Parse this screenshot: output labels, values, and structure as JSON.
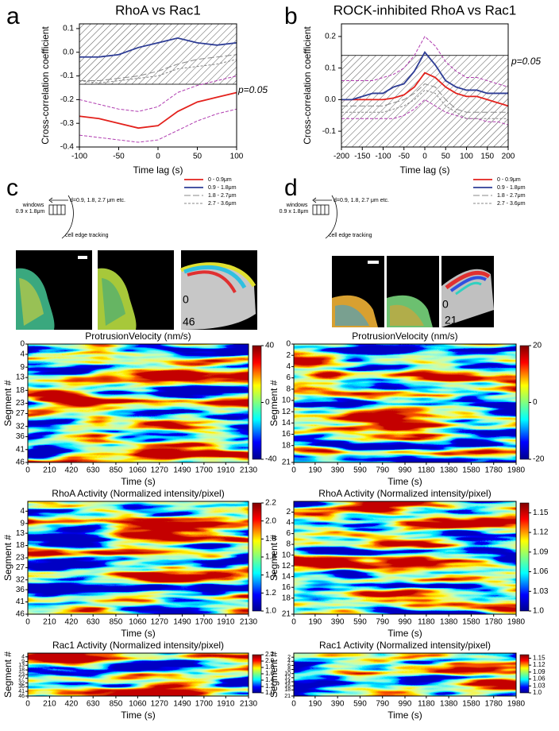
{
  "panel_labels": [
    "a",
    "b",
    "c",
    "d"
  ],
  "diagrams": [
    {
      "labels": [
        "d=0.9, 1.8, 2.7 μm etc.",
        "windows",
        "0.9 x 1.8μm",
        "cell edge tracking"
      ]
    },
    {
      "labels": [
        "d=0.9, 1.8, 2.7 μm etc.",
        "windows",
        "0.9 x 1.8μm",
        "cell edge tracking"
      ]
    }
  ],
  "micrographs": [
    {
      "labels": [
        "0",
        "46"
      ]
    },
    {
      "labels": [
        "0",
        "21"
      ]
    }
  ],
  "chart_data": [
    {
      "type": "line",
      "title": "RhoA vs Rac1",
      "xlabel": "Time lag (s)",
      "ylabel": "Cross-correlation coefficient",
      "annotation": "p=0.05",
      "significance_band": [
        -0.135,
        0.12
      ],
      "xlim": [
        -100,
        100
      ],
      "xticks": [
        -100,
        -50,
        0,
        50,
        100
      ],
      "ylim": [
        -0.4,
        0.12
      ],
      "yticks": [
        -0.4,
        -0.3,
        -0.2,
        -0.1,
        {
          "value": 0,
          "label": "0.0"
        },
        0.1
      ],
      "x": [
        -100,
        -75,
        -50,
        -25,
        0,
        25,
        50,
        75,
        100
      ],
      "series": [
        {
          "name": "0 - 0.9μm",
          "color": "#e3211c",
          "dash": "solid",
          "values": [
            -0.27,
            -0.28,
            -0.3,
            -0.32,
            -0.31,
            -0.25,
            -0.21,
            -0.19,
            -0.17
          ],
          "ci_color": "#b03cb0",
          "ci_upper": [
            -0.2,
            -0.22,
            -0.24,
            -0.25,
            -0.23,
            -0.17,
            -0.14,
            -0.12,
            -0.1
          ],
          "ci_lower": [
            -0.35,
            -0.36,
            -0.37,
            -0.38,
            -0.37,
            -0.33,
            -0.29,
            -0.26,
            -0.24
          ]
        },
        {
          "name": "0.9 - 1.8μm",
          "color": "#2e3d96",
          "dash": "solid",
          "values": [
            -0.02,
            -0.02,
            -0.01,
            0.02,
            0.04,
            0.06,
            0.04,
            0.03,
            0.04
          ]
        },
        {
          "name": "1.8 - 2.7μm",
          "color": "#888888",
          "dash": "longdash",
          "values": [
            -0.12,
            -0.12,
            -0.11,
            -0.1,
            -0.08,
            -0.05,
            -0.03,
            -0.02,
            -0.01
          ]
        },
        {
          "name": "2.7 - 3.6μm",
          "color": "#888888",
          "dash": "dash",
          "values": [
            -0.12,
            -0.13,
            -0.12,
            -0.11,
            -0.1,
            -0.07,
            -0.06,
            -0.05,
            -0.03
          ]
        }
      ]
    },
    {
      "type": "line",
      "title": "ROCK-inhibited RhoA vs Rac1",
      "xlabel": "Time lag (s)",
      "ylabel": "Cross-correlation coefficient",
      "annotation": "p=0.05",
      "significance_band": [
        -0.15,
        0.14
      ],
      "xlim": [
        -200,
        200
      ],
      "xticks": [
        -200,
        -150,
        -100,
        -50,
        0,
        50,
        100,
        150,
        200
      ],
      "ylim": [
        -0.15,
        0.24
      ],
      "yticks": [
        -0.1,
        {
          "value": 0,
          "label": "0.0"
        },
        0.1,
        0.2
      ],
      "x": [
        -200,
        -175,
        -150,
        -125,
        -100,
        -75,
        -50,
        -25,
        0,
        25,
        50,
        75,
        100,
        125,
        150,
        175,
        200
      ],
      "series": [
        {
          "name": "0 - 0.9μm",
          "color": "#e3211c",
          "dash": "solid",
          "values": [
            0,
            0,
            0,
            0,
            0,
            0.005,
            0.015,
            0.04,
            0.085,
            0.07,
            0.04,
            0.02,
            0.01,
            0.01,
            0,
            -0.01,
            -0.02
          ],
          "ci_color": "#b03cb0",
          "ci_upper": [
            0.06,
            0.06,
            0.06,
            0.06,
            0.07,
            0.08,
            0.1,
            0.14,
            0.2,
            0.17,
            0.12,
            0.09,
            0.07,
            0.07,
            0.06,
            0.05,
            0.04
          ],
          "ci_lower": [
            -0.06,
            -0.06,
            -0.06,
            -0.06,
            -0.06,
            -0.06,
            -0.05,
            -0.03,
            0,
            -0.02,
            -0.04,
            -0.05,
            -0.06,
            -0.06,
            -0.07,
            -0.07,
            -0.08
          ]
        },
        {
          "name": "0.9 - 1.8μm",
          "color": "#2e3d96",
          "dash": "solid",
          "values": [
            0,
            0,
            0.01,
            0.02,
            0.02,
            0.04,
            0.05,
            0.09,
            0.15,
            0.11,
            0.06,
            0.04,
            0.03,
            0.03,
            0.02,
            0.02,
            0.02
          ]
        },
        {
          "name": "1.8 - 2.7μm",
          "color": "#888888",
          "dash": "longdash",
          "values": [
            -0.02,
            -0.02,
            -0.02,
            -0.02,
            -0.02,
            -0.01,
            0,
            0.02,
            0.05,
            0.04,
            0,
            -0.03,
            -0.04,
            -0.04,
            -0.04,
            -0.04,
            -0.04
          ]
        },
        {
          "name": "2.7 - 3.6μm",
          "color": "#888888",
          "dash": "dash",
          "values": [
            -0.04,
            -0.04,
            -0.04,
            -0.04,
            -0.04,
            -0.03,
            -0.02,
            0,
            0.03,
            0.02,
            -0.02,
            -0.04,
            -0.06,
            -0.06,
            -0.06,
            -0.06,
            -0.06
          ]
        }
      ]
    },
    {
      "type": "heatmap",
      "title": "ProtrusionVelocity (nm/s)",
      "xlabel": "Time (s)",
      "ylabel": "Segment #",
      "colormap": "jet",
      "xlim": [
        0,
        2130
      ],
      "xticks": [
        0,
        210,
        420,
        630,
        850,
        1060,
        1270,
        1490,
        1700,
        1910,
        2130
      ],
      "ylim": [
        0,
        46
      ],
      "y_inverted": true,
      "yticks": [
        0,
        4,
        9,
        13,
        18,
        23,
        27,
        32,
        36,
        41,
        46
      ],
      "clim": [
        -40,
        40
      ],
      "cticks": [
        40,
        0,
        -40
      ]
    },
    {
      "type": "heatmap",
      "title": "ProtrusionVelocity (nm/s)",
      "xlabel": "Time (s)",
      "ylabel": "Segment #",
      "colormap": "jet",
      "xlim": [
        0,
        1980
      ],
      "xticks": [
        0,
        190,
        390,
        590,
        790,
        990,
        1180,
        1380,
        1580,
        1780,
        1980
      ],
      "ylim": [
        0,
        21
      ],
      "y_inverted": true,
      "yticks": [
        0,
        2,
        4,
        6,
        8,
        10,
        12,
        14,
        16,
        18,
        21
      ],
      "clim": [
        -20,
        20
      ],
      "cticks": [
        20,
        0,
        -20
      ]
    },
    {
      "type": "heatmap",
      "title": "RhoA Activity (Normalized intensity/pixel)",
      "xlabel": "Time (s)",
      "ylabel": "Segment #",
      "colormap": "jet",
      "xlim": [
        0,
        2130
      ],
      "xticks": [
        0,
        210,
        420,
        630,
        850,
        1060,
        1270,
        1490,
        1700,
        1910,
        2130
      ],
      "ylim": [
        0,
        46
      ],
      "y_inverted": true,
      "yticks": [
        4,
        9,
        13,
        18,
        23,
        27,
        32,
        36,
        41,
        46
      ],
      "clim": [
        1,
        2.2
      ],
      "cticks": [
        2.2,
        {
          "value": 2,
          "label": "2.0"
        },
        1.8,
        1.6,
        1.4,
        1.2,
        {
          "value": 1,
          "label": "1.0"
        }
      ]
    },
    {
      "type": "heatmap",
      "title": "RhoA Activity (Normalized intensity/pixel)",
      "xlabel": "Time (s)",
      "ylabel": "Segment #",
      "colormap": "jet",
      "xlim": [
        0,
        1980
      ],
      "xticks": [
        0,
        190,
        390,
        590,
        790,
        990,
        1180,
        1380,
        1580,
        1780,
        1980
      ],
      "ylim": [
        0,
        21
      ],
      "y_inverted": true,
      "yticks": [
        2,
        4,
        6,
        8,
        10,
        12,
        14,
        16,
        18,
        21
      ],
      "clim": [
        1,
        1.165
      ],
      "cticks": [
        1.15,
        1.12,
        1.09,
        1.06,
        1.03,
        {
          "value": 1,
          "label": "1.0"
        }
      ]
    },
    {
      "type": "heatmap",
      "title": "Rac1 Activity (Normalized intensity/pixel)",
      "xlabel": "Time (s)",
      "ylabel": "Segment #",
      "colormap": "jet",
      "xlim": [
        0,
        2130
      ],
      "xticks": [
        0,
        210,
        420,
        630,
        850,
        1060,
        1270,
        1490,
        1700,
        1910,
        2130
      ],
      "ylim": [
        0,
        46
      ],
      "y_inverted": true,
      "yticks": [
        4,
        9,
        13,
        18,
        23,
        27,
        32,
        36,
        41,
        46
      ],
      "clim": [
        1,
        2.2
      ],
      "cticks": [
        2.2,
        {
          "value": 2,
          "label": "2.0"
        },
        1.8,
        1.6,
        1.4,
        1.2,
        {
          "value": 1,
          "label": "1.0"
        }
      ]
    },
    {
      "type": "heatmap",
      "title": "Rac1 Activity (Normalized intensity/pixel)",
      "xlabel": "Time (s)",
      "ylabel": "Segment #",
      "colormap": "jet",
      "xlim": [
        0,
        1980
      ],
      "xticks": [
        0,
        190,
        390,
        590,
        790,
        990,
        1180,
        1380,
        1580,
        1780,
        1980
      ],
      "ylim": [
        0,
        21
      ],
      "y_inverted": true,
      "yticks": [
        2,
        4,
        6,
        8,
        10,
        12,
        14,
        16,
        18,
        21
      ],
      "clim": [
        1,
        1.165
      ],
      "cticks": [
        1.15,
        1.12,
        1.09,
        1.06,
        1.03,
        {
          "value": 1,
          "label": "1.0"
        }
      ]
    }
  ]
}
